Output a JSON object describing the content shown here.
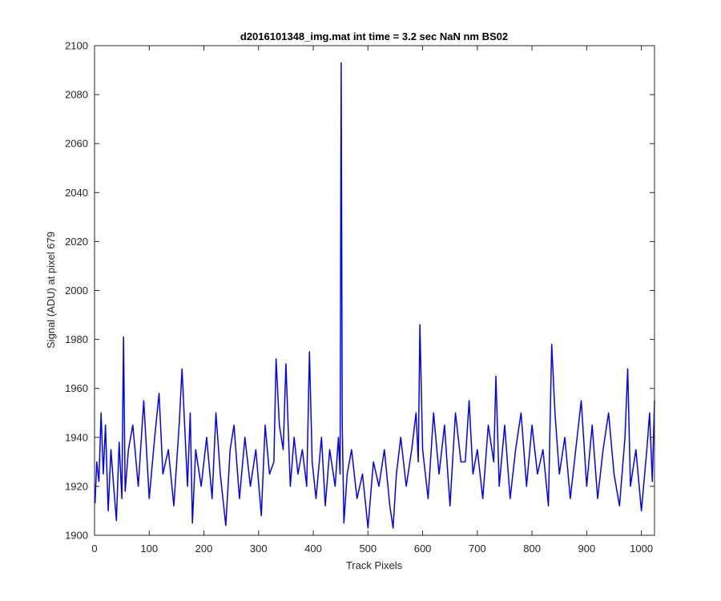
{
  "chart_data": {
    "type": "line",
    "title": "d2016101348_img.mat int time = 3.2 sec  NaN nm BS02",
    "xlabel": "Track Pixels",
    "ylabel": "Signal (ADU) at pixel 679",
    "xlim": [
      0,
      1024
    ],
    "ylim": [
      1900,
      2100
    ],
    "xticks": [
      0,
      100,
      200,
      300,
      400,
      500,
      600,
      700,
      800,
      900,
      1000
    ],
    "yticks": [
      1900,
      1920,
      1940,
      1960,
      1980,
      2000,
      2020,
      2040,
      2060,
      2080,
      2100
    ],
    "grid": false,
    "legend": "none",
    "line_color": "#0000ff",
    "series": [
      {
        "x": [
          1,
          4,
          8,
          12,
          16,
          20,
          25,
          30,
          35,
          40,
          45,
          50,
          53,
          56,
          62,
          70,
          80,
          90,
          100,
          110,
          118,
          125,
          135,
          145,
          155,
          160,
          170,
          175,
          179,
          185,
          195,
          205,
          215,
          222,
          230,
          240,
          248,
          255,
          265,
          275,
          285,
          295,
          305,
          312,
          320,
          328,
          332,
          338,
          345,
          350,
          358,
          365,
          372,
          380,
          388,
          393,
          398,
          405,
          415,
          422,
          430,
          440,
          446,
          449,
          451,
          453,
          456,
          462,
          470,
          480,
          490,
          496,
          500,
          510,
          520,
          530,
          540,
          546,
          552,
          560,
          570,
          580,
          588,
          592,
          595,
          600,
          610,
          620,
          630,
          640,
          650,
          660,
          670,
          678,
          685,
          692,
          700,
          710,
          720,
          730,
          734,
          740,
          750,
          760,
          770,
          780,
          790,
          800,
          810,
          820,
          830,
          836,
          842,
          850,
          860,
          870,
          880,
          890,
          900,
          910,
          920,
          930,
          940,
          950,
          960,
          970,
          975,
          980,
          990,
          1000,
          1010,
          1015,
          1020,
          1024
        ],
        "y": [
          1913,
          1930,
          1922,
          1950,
          1925,
          1945,
          1910,
          1935,
          1920,
          1906,
          1938,
          1915,
          1981,
          1918,
          1935,
          1945,
          1920,
          1955,
          1915,
          1940,
          1958,
          1925,
          1935,
          1912,
          1946,
          1968,
          1920,
          1950,
          1905,
          1935,
          1920,
          1940,
          1915,
          1950,
          1925,
          1904,
          1935,
          1945,
          1915,
          1940,
          1920,
          1935,
          1908,
          1945,
          1925,
          1930,
          1972,
          1945,
          1935,
          1970,
          1920,
          1940,
          1925,
          1935,
          1920,
          1975,
          1930,
          1915,
          1940,
          1912,
          1935,
          1920,
          1940,
          1925,
          2093,
          1945,
          1905,
          1925,
          1935,
          1915,
          1925,
          1912,
          1903,
          1930,
          1920,
          1935,
          1912,
          1903,
          1925,
          1940,
          1920,
          1935,
          1950,
          1930,
          1986,
          1935,
          1915,
          1950,
          1925,
          1945,
          1912,
          1950,
          1930,
          1930,
          1955,
          1925,
          1935,
          1915,
          1945,
          1930,
          1965,
          1920,
          1945,
          1915,
          1935,
          1950,
          1920,
          1945,
          1925,
          1935,
          1912,
          1978,
          1950,
          1925,
          1940,
          1915,
          1935,
          1955,
          1920,
          1945,
          1915,
          1935,
          1950,
          1925,
          1912,
          1940,
          1968,
          1920,
          1935,
          1910,
          1935,
          1950,
          1922,
          1955
        ]
      }
    ]
  }
}
